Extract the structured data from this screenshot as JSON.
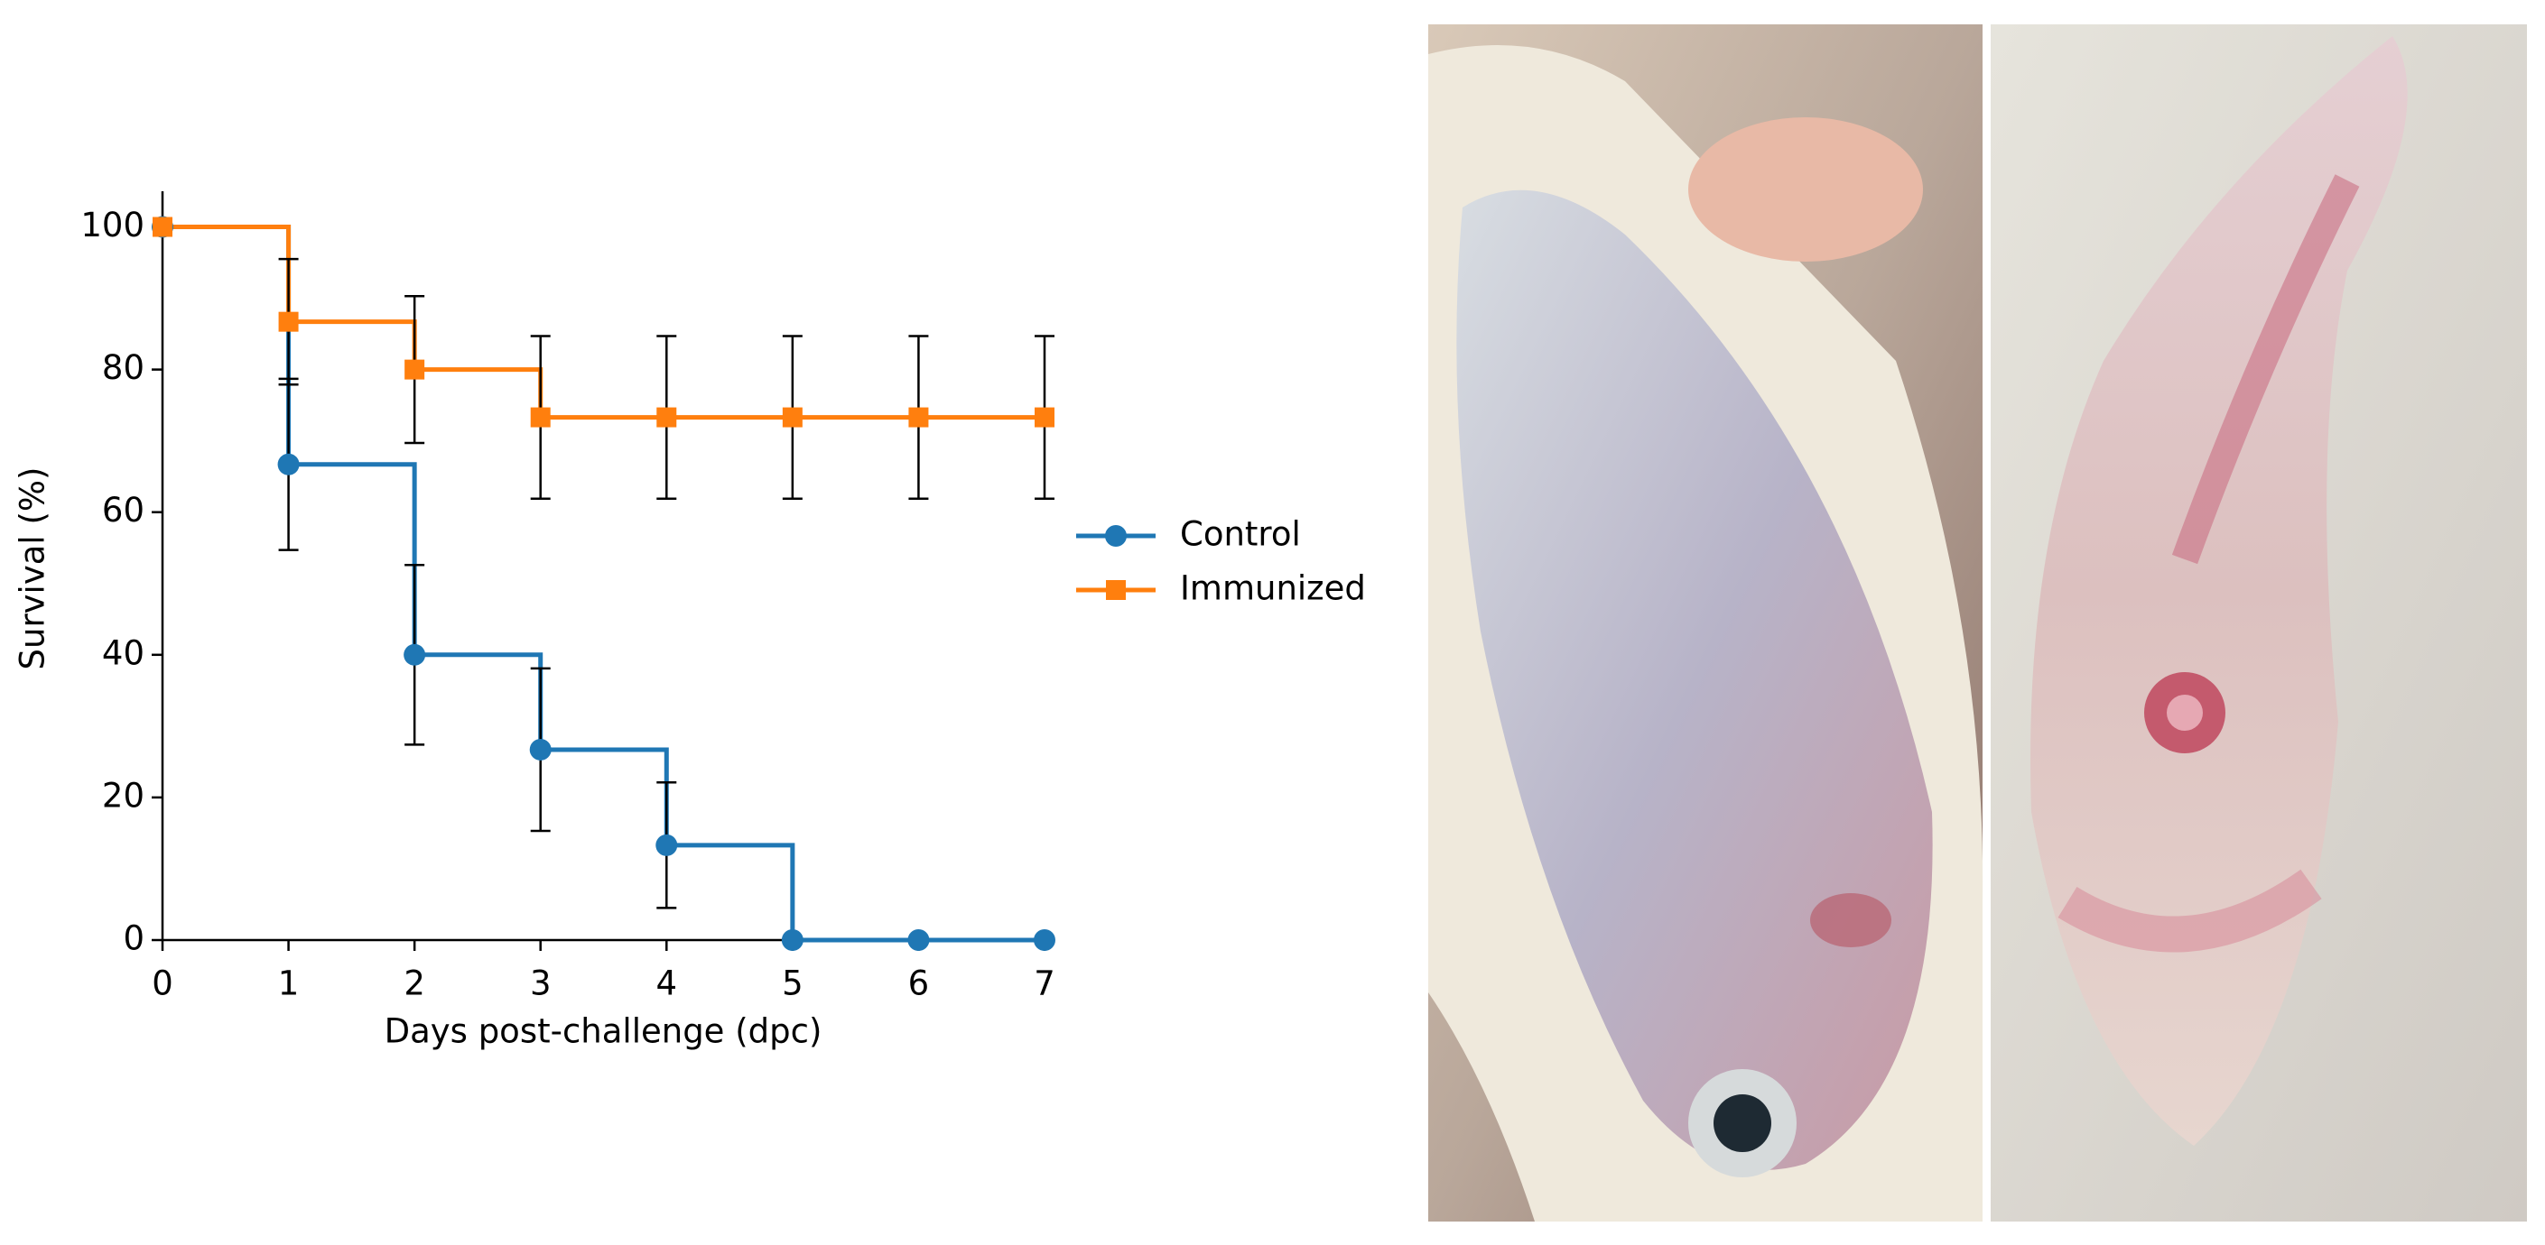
{
  "chart_data": {
    "type": "step",
    "x": [
      0,
      1,
      2,
      3,
      4,
      5,
      6,
      7
    ],
    "xlim": [
      0,
      7
    ],
    "xticks": [
      0,
      1,
      2,
      3,
      4,
      5,
      6,
      7
    ],
    "ylim": [
      0,
      105
    ],
    "yticks": [
      0,
      20,
      40,
      60,
      80,
      100
    ],
    "x_label": "Days post-challenge (dpc)",
    "y_label": "Survival (%)",
    "series": [
      {
        "name": "Control",
        "color": "#1f77b4",
        "marker": "circle",
        "values": [
          100,
          66.7,
          40,
          26.7,
          13.3,
          0,
          0,
          0
        ],
        "errors": [
          0,
          12,
          12.6,
          11.4,
          8.8,
          0,
          0,
          0
        ]
      },
      {
        "name": "Immunized",
        "color": "#ff7f0e",
        "marker": "square",
        "values": [
          100,
          86.7,
          80,
          73.3,
          73.3,
          73.3,
          73.3,
          73.3
        ],
        "errors": [
          0,
          8.8,
          10.3,
          11.4,
          11.4,
          11.4,
          11.4,
          11.4
        ]
      }
    ],
    "legend": "right"
  }
}
